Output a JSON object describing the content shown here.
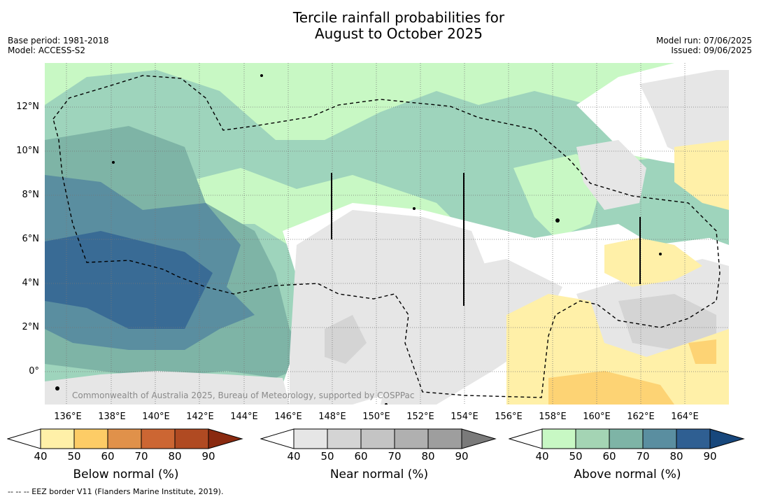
{
  "title": {
    "line1": "Tercile rainfall probabilities for",
    "line2": "August to October 2025"
  },
  "meta_left": {
    "base_period": "Base period: 1981-2018",
    "model": "Model: ACCESS-S2"
  },
  "meta_right": {
    "model_run": "Model run: 07/06/2025",
    "issued": "Issued: 09/06/2025"
  },
  "map": {
    "lon_labels": [
      "136°E",
      "138°E",
      "140°E",
      "142°E",
      "144°E",
      "146°E",
      "148°E",
      "150°E",
      "152°E",
      "154°E",
      "156°E",
      "158°E",
      "160°E",
      "162°E",
      "164°E"
    ],
    "lat_labels": [
      "12°N",
      "10°N",
      "8°N",
      "6°N",
      "4°N",
      "2°N",
      "0°"
    ],
    "credit": "Commonwealth of Australia 2025, Bureau of Meteorology, supported by COSPPac"
  },
  "colorbars": [
    {
      "title": "Below normal (%)",
      "ticks": [
        "40",
        "50",
        "60",
        "70",
        "80",
        "90"
      ],
      "colors": [
        "#ffffff",
        "#fff0a8",
        "#fdcc66",
        "#e0914a",
        "#cc6633",
        "#b04a22",
        "#8a2a10"
      ]
    },
    {
      "title": "Near normal (%)",
      "ticks": [
        "40",
        "50",
        "60",
        "70",
        "80",
        "90"
      ],
      "colors": [
        "#ffffff",
        "#e6e6e6",
        "#d4d4d4",
        "#c4c4c4",
        "#b0b0b0",
        "#9e9e9e",
        "#7a7a7a"
      ]
    },
    {
      "title": "Above normal (%)",
      "ticks": [
        "40",
        "50",
        "60",
        "70",
        "80",
        "90"
      ],
      "colors": [
        "#ffffff",
        "#c8f8c4",
        "#a4d4b4",
        "#7eb4a6",
        "#5a8ea0",
        "#2f5f92",
        "#17477c"
      ]
    }
  ],
  "footnote": "-- -- -- EEZ border V11 (Flanders Marine Institute, 2019)."
}
